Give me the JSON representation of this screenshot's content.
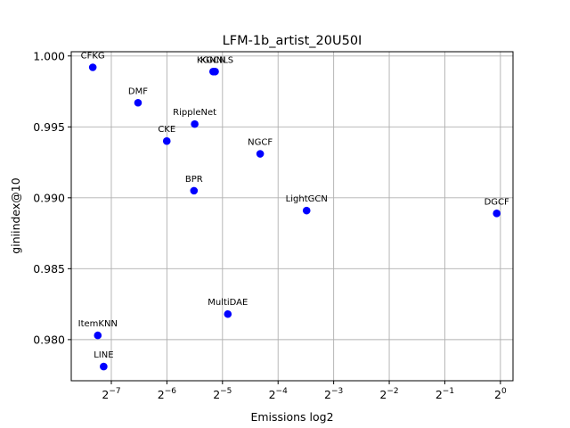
{
  "chart_data": {
    "type": "scatter",
    "title": "LFM-1b_artist_20U50I",
    "xlabel": "Emissions log2",
    "ylabel": "giniindex@10",
    "x_scale": "log2",
    "xlim": [
      0.00474,
      1.17
    ],
    "ylim": [
      0.9771,
      1.0003
    ],
    "x_ticks": [
      {
        "base": "2",
        "exp": "−7",
        "value": 0.0078125
      },
      {
        "base": "2",
        "exp": "−6",
        "value": 0.015625
      },
      {
        "base": "2",
        "exp": "−5",
        "value": 0.03125
      },
      {
        "base": "2",
        "exp": "−4",
        "value": 0.0625
      },
      {
        "base": "2",
        "exp": "−3",
        "value": 0.125
      },
      {
        "base": "2",
        "exp": "−2",
        "value": 0.25
      },
      {
        "base": "2",
        "exp": "−1",
        "value": 0.5
      },
      {
        "base": "2",
        "exp": "0",
        "value": 1
      }
    ],
    "y_ticks": [
      {
        "label": "0.980",
        "value": 0.98
      },
      {
        "label": "0.985",
        "value": 0.985
      },
      {
        "label": "0.990",
        "value": 0.99
      },
      {
        "label": "0.995",
        "value": 0.995
      },
      {
        "label": "1.000",
        "value": 1.0
      }
    ],
    "grid": true,
    "marker_color": "#0000ff",
    "points": [
      {
        "label": "CFKG",
        "x": 0.0062,
        "y": 0.9992
      },
      {
        "label": "DMF",
        "x": 0.0109,
        "y": 0.9967
      },
      {
        "label": "CKE",
        "x": 0.0156,
        "y": 0.994
      },
      {
        "label": "RippleNet",
        "x": 0.0221,
        "y": 0.9952
      },
      {
        "label": "KGCN",
        "x": 0.0278,
        "y": 0.9989
      },
      {
        "label": "KGNNLS",
        "x": 0.0285,
        "y": 0.9989
      },
      {
        "label": "BPR",
        "x": 0.0219,
        "y": 0.9905
      },
      {
        "label": "NGCF",
        "x": 0.05,
        "y": 0.9931
      },
      {
        "label": "LightGCN",
        "x": 0.0892,
        "y": 0.9891
      },
      {
        "label": "DGCF",
        "x": 0.955,
        "y": 0.9889
      },
      {
        "label": "MultiDAE",
        "x": 0.0334,
        "y": 0.9818
      },
      {
        "label": "ItemKNN",
        "x": 0.0066,
        "y": 0.9803
      },
      {
        "label": "LINE",
        "x": 0.0071,
        "y": 0.9781
      }
    ]
  }
}
